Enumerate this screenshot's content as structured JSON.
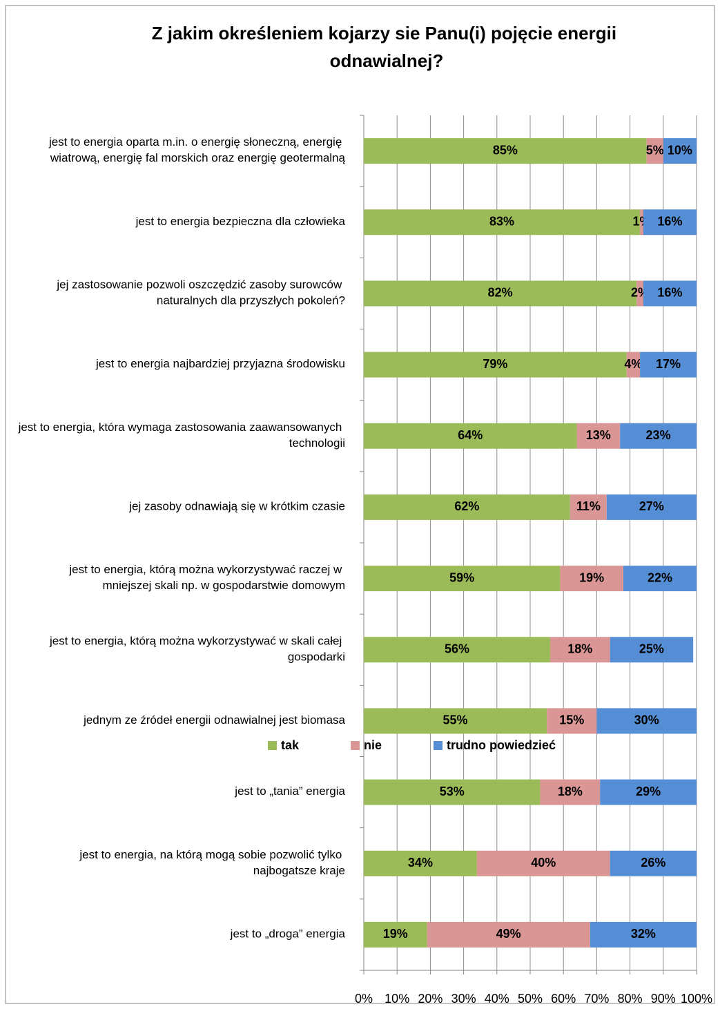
{
  "chart_data": {
    "type": "stacked_barh",
    "title": "Z jakim określeniem kojarzy sie Panu(i) pojęcie energii odnawialnej?",
    "categories": [
      "jest to energia oparta m.in. o energię słoneczną, energię wiatrową, energię fal morskich oraz energię geotermalną",
      "jest to energia bezpieczna dla człowieka",
      "jej zastosowanie pozwoli oszczędzić zasoby surowców naturalnych dla przyszłych pokoleń?",
      "jest to energia najbardziej przyjazna środowisku",
      "jest to energia, która wymaga zastosowania zaawansowanych technologii",
      "jej zasoby odnawiają się w krótkim czasie",
      "jest to energia, którą można wykorzystywać raczej w mniejszej skali np. w gospodarstwie domowym",
      "jest to energia, którą można wykorzystywać w skali całej gospodarki",
      "jednym ze źródeł energii odnawialnej jest biomasa",
      "jest to „tania” energia",
      "jest to energia, na którą mogą sobie pozwolić tylko najbogatsze kraje",
      "jest to „droga” energia"
    ],
    "series": [
      {
        "name": "tak",
        "color": "#9bbb59",
        "values": [
          85,
          83,
          82,
          79,
          64,
          62,
          59,
          56,
          55,
          53,
          34,
          19
        ],
        "value_labels": [
          "85%",
          "83%",
          "82%",
          "79%",
          "64%",
          "62%",
          "59%",
          "56%",
          "55%",
          "53%",
          "34%",
          "19%"
        ]
      },
      {
        "name": "nie",
        "color": "#d99694",
        "values": [
          5,
          1,
          2,
          4,
          13,
          11,
          19,
          18,
          15,
          18,
          40,
          49
        ],
        "value_labels": [
          "5%",
          "1%",
          "2%",
          "4%",
          "13%",
          "11%",
          "19%",
          "18%",
          "15%",
          "18%",
          "40%",
          "49%"
        ]
      },
      {
        "name": "trudno powiedzieć",
        "color": "#558ed5",
        "values": [
          10,
          16,
          16,
          17,
          23,
          27,
          22,
          25,
          30,
          29,
          26,
          32
        ],
        "value_labels": [
          "10%",
          "16%",
          "16%",
          "17%",
          "23%",
          "27%",
          "22%",
          "25%",
          "30%",
          "29%",
          "26%",
          "32%"
        ]
      }
    ],
    "xlim": [
      0,
      100
    ],
    "xticks": [
      {
        "value": 0,
        "label": "0%"
      },
      {
        "value": 10,
        "label": "10%"
      },
      {
        "value": 20,
        "label": "20%"
      },
      {
        "value": 30,
        "label": "30%"
      },
      {
        "value": 40,
        "label": "40%"
      },
      {
        "value": 50,
        "label": "50%"
      },
      {
        "value": 60,
        "label": "60%"
      },
      {
        "value": 70,
        "label": "70%"
      },
      {
        "value": 80,
        "label": "80%"
      },
      {
        "value": 90,
        "label": "90%"
      },
      {
        "value": 100,
        "label": "100%"
      }
    ],
    "grid": true,
    "legend": "bottom"
  }
}
